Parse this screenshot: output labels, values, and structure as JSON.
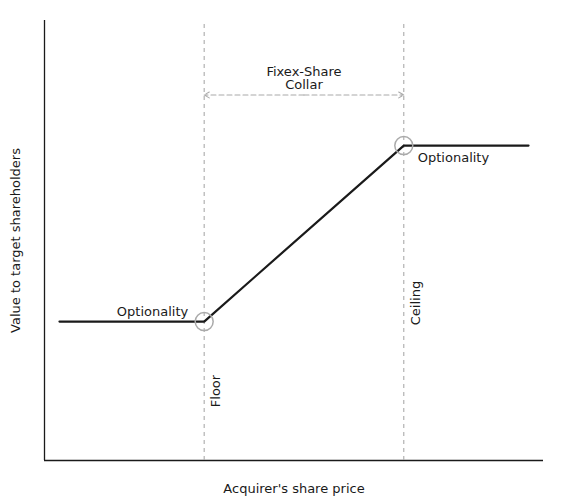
{
  "chart_data": {
    "type": "line",
    "x": [
      0.3,
      3.2,
      7.2,
      9.7
    ],
    "values": [
      3.0,
      3.0,
      6.8,
      6.8
    ],
    "color": "#1a1a1a",
    "xlabel": "Acquirer's share price",
    "ylabel": "Value to target shareholders",
    "xlim": [
      0,
      10
    ],
    "ylim": [
      0,
      9.5
    ],
    "tick_labels": false,
    "annotations": [
      "Optionality",
      "Optionality",
      "Floor",
      "Ceiling",
      "Fixex-Share\nCollar"
    ]
  }
}
